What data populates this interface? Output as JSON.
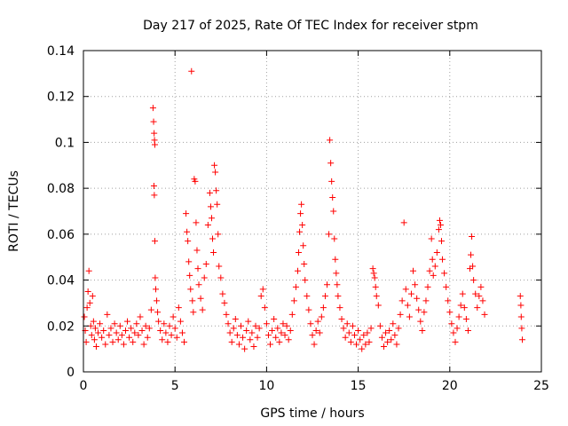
{
  "chart_data": {
    "type": "scatter",
    "title": "Day 217 of 2025, Rate Of TEC Index for receiver stpm",
    "xlabel": "GPS time / hours",
    "ylabel": "ROTI / TECUs",
    "xlim": [
      0,
      25
    ],
    "ylim": [
      0,
      0.14
    ],
    "x_ticks": [
      0,
      5,
      10,
      15,
      20,
      25
    ],
    "x_tick_labels": [
      "0",
      "5",
      "10",
      "15",
      "20",
      "25"
    ],
    "y_ticks": [
      0,
      0.02,
      0.04,
      0.06,
      0.08,
      0.1,
      0.12,
      0.14
    ],
    "y_tick_labels": [
      "0",
      "0.02",
      "0.04",
      "0.06",
      "0.08",
      "0.1",
      "0.12",
      "0.14"
    ],
    "grid": true,
    "marker": "plus",
    "color": "#ff0000",
    "series": [
      {
        "points": [
          [
            0.05,
            0.024
          ],
          [
            0.1,
            0.018
          ],
          [
            0.15,
            0.013
          ],
          [
            0.2,
            0.028
          ],
          [
            0.25,
            0.035
          ],
          [
            0.3,
            0.044
          ],
          [
            0.35,
            0.03
          ],
          [
            0.4,
            0.02
          ],
          [
            0.45,
            0.016
          ],
          [
            0.5,
            0.033
          ],
          [
            0.55,
            0.022
          ],
          [
            0.6,
            0.014
          ],
          [
            0.65,
            0.019
          ],
          [
            0.7,
            0.011
          ],
          [
            0.8,
            0.017
          ],
          [
            0.9,
            0.021
          ],
          [
            1.0,
            0.015
          ],
          [
            1.1,
            0.018
          ],
          [
            1.2,
            0.012
          ],
          [
            1.3,
            0.025
          ],
          [
            1.4,
            0.016
          ],
          [
            1.5,
            0.019
          ],
          [
            1.6,
            0.013
          ],
          [
            1.7,
            0.021
          ],
          [
            1.8,
            0.017
          ],
          [
            1.9,
            0.014
          ],
          [
            2.0,
            0.02
          ],
          [
            2.1,
            0.016
          ],
          [
            2.2,
            0.012
          ],
          [
            2.3,
            0.018
          ],
          [
            2.4,
            0.022
          ],
          [
            2.5,
            0.015
          ],
          [
            2.6,
            0.019
          ],
          [
            2.7,
            0.013
          ],
          [
            2.8,
            0.017
          ],
          [
            2.9,
            0.021
          ],
          [
            3.0,
            0.016
          ],
          [
            3.1,
            0.024
          ],
          [
            3.2,
            0.018
          ],
          [
            3.3,
            0.012
          ],
          [
            3.4,
            0.02
          ],
          [
            3.5,
            0.015
          ],
          [
            3.6,
            0.019
          ],
          [
            3.7,
            0.027
          ],
          [
            3.8,
            0.115
          ],
          [
            3.83,
            0.109
          ],
          [
            3.86,
            0.104
          ],
          [
            3.88,
            0.101
          ],
          [
            3.9,
            0.099
          ],
          [
            3.85,
            0.081
          ],
          [
            3.87,
            0.077
          ],
          [
            3.9,
            0.057
          ],
          [
            3.92,
            0.041
          ],
          [
            3.95,
            0.036
          ],
          [
            4.0,
            0.031
          ],
          [
            4.05,
            0.026
          ],
          [
            4.1,
            0.022
          ],
          [
            4.2,
            0.018
          ],
          [
            4.3,
            0.014
          ],
          [
            4.4,
            0.021
          ],
          [
            4.5,
            0.017
          ],
          [
            4.6,
            0.013
          ],
          [
            4.7,
            0.02
          ],
          [
            4.8,
            0.016
          ],
          [
            4.9,
            0.024
          ],
          [
            5.0,
            0.019
          ],
          [
            5.1,
            0.015
          ],
          [
            5.2,
            0.028
          ],
          [
            5.3,
            0.022
          ],
          [
            5.4,
            0.017
          ],
          [
            5.5,
            0.013
          ],
          [
            5.6,
            0.069
          ],
          [
            5.65,
            0.061
          ],
          [
            5.7,
            0.057
          ],
          [
            5.75,
            0.048
          ],
          [
            5.8,
            0.042
          ],
          [
            5.85,
            0.036
          ],
          [
            5.9,
            0.131
          ],
          [
            5.95,
            0.031
          ],
          [
            6.0,
            0.026
          ],
          [
            6.05,
            0.084
          ],
          [
            6.1,
            0.083
          ],
          [
            6.15,
            0.065
          ],
          [
            6.2,
            0.053
          ],
          [
            6.25,
            0.045
          ],
          [
            6.3,
            0.038
          ],
          [
            6.4,
            0.032
          ],
          [
            6.5,
            0.027
          ],
          [
            6.6,
            0.041
          ],
          [
            6.7,
            0.047
          ],
          [
            6.8,
            0.064
          ],
          [
            6.9,
            0.078
          ],
          [
            6.95,
            0.072
          ],
          [
            7.0,
            0.067
          ],
          [
            7.05,
            0.058
          ],
          [
            7.1,
            0.052
          ],
          [
            7.15,
            0.09
          ],
          [
            7.2,
            0.087
          ],
          [
            7.25,
            0.079
          ],
          [
            7.3,
            0.073
          ],
          [
            7.35,
            0.06
          ],
          [
            7.4,
            0.046
          ],
          [
            7.5,
            0.041
          ],
          [
            7.6,
            0.034
          ],
          [
            7.7,
            0.03
          ],
          [
            7.8,
            0.025
          ],
          [
            7.9,
            0.021
          ],
          [
            8.0,
            0.017
          ],
          [
            8.1,
            0.013
          ],
          [
            8.2,
            0.019
          ],
          [
            8.3,
            0.023
          ],
          [
            8.4,
            0.016
          ],
          [
            8.5,
            0.012
          ],
          [
            8.6,
            0.02
          ],
          [
            8.7,
            0.015
          ],
          [
            8.8,
            0.01
          ],
          [
            8.9,
            0.018
          ],
          [
            9.0,
            0.022
          ],
          [
            9.1,
            0.014
          ],
          [
            9.2,
            0.017
          ],
          [
            9.3,
            0.011
          ],
          [
            9.4,
            0.02
          ],
          [
            9.5,
            0.015
          ],
          [
            9.6,
            0.019
          ],
          [
            9.7,
            0.033
          ],
          [
            9.8,
            0.036
          ],
          [
            9.9,
            0.028
          ],
          [
            10.0,
            0.021
          ],
          [
            10.1,
            0.016
          ],
          [
            10.2,
            0.012
          ],
          [
            10.3,
            0.018
          ],
          [
            10.4,
            0.023
          ],
          [
            10.5,
            0.015
          ],
          [
            10.6,
            0.019
          ],
          [
            10.7,
            0.013
          ],
          [
            10.8,
            0.017
          ],
          [
            10.9,
            0.021
          ],
          [
            11.0,
            0.016
          ],
          [
            11.1,
            0.02
          ],
          [
            11.2,
            0.014
          ],
          [
            11.3,
            0.018
          ],
          [
            11.4,
            0.025
          ],
          [
            11.5,
            0.031
          ],
          [
            11.6,
            0.037
          ],
          [
            11.7,
            0.044
          ],
          [
            11.75,
            0.052
          ],
          [
            11.8,
            0.061
          ],
          [
            11.85,
            0.069
          ],
          [
            11.9,
            0.073
          ],
          [
            11.95,
            0.064
          ],
          [
            12.0,
            0.055
          ],
          [
            12.05,
            0.047
          ],
          [
            12.1,
            0.04
          ],
          [
            12.2,
            0.033
          ],
          [
            12.3,
            0.027
          ],
          [
            12.4,
            0.021
          ],
          [
            12.5,
            0.016
          ],
          [
            12.6,
            0.012
          ],
          [
            12.7,
            0.018
          ],
          [
            12.8,
            0.022
          ],
          [
            12.9,
            0.017
          ],
          [
            13.0,
            0.024
          ],
          [
            13.1,
            0.028
          ],
          [
            13.2,
            0.033
          ],
          [
            13.3,
            0.038
          ],
          [
            13.4,
            0.06
          ],
          [
            13.45,
            0.101
          ],
          [
            13.5,
            0.091
          ],
          [
            13.55,
            0.083
          ],
          [
            13.6,
            0.076
          ],
          [
            13.65,
            0.07
          ],
          [
            13.7,
            0.058
          ],
          [
            13.75,
            0.049
          ],
          [
            13.8,
            0.043
          ],
          [
            13.85,
            0.038
          ],
          [
            13.9,
            0.033
          ],
          [
            14.0,
            0.028
          ],
          [
            14.1,
            0.023
          ],
          [
            14.2,
            0.019
          ],
          [
            14.3,
            0.015
          ],
          [
            14.4,
            0.021
          ],
          [
            14.5,
            0.017
          ],
          [
            14.6,
            0.013
          ],
          [
            14.7,
            0.02
          ],
          [
            14.8,
            0.016
          ],
          [
            14.9,
            0.012
          ],
          [
            15.0,
            0.018
          ],
          [
            15.1,
            0.014
          ],
          [
            15.2,
            0.01
          ],
          [
            15.3,
            0.016
          ],
          [
            15.4,
            0.012
          ],
          [
            15.5,
            0.017
          ],
          [
            15.6,
            0.013
          ],
          [
            15.7,
            0.019
          ],
          [
            15.8,
            0.045
          ],
          [
            15.85,
            0.043
          ],
          [
            15.9,
            0.041
          ],
          [
            15.95,
            0.037
          ],
          [
            16.0,
            0.033
          ],
          [
            16.1,
            0.029
          ],
          [
            16.2,
            0.02
          ],
          [
            16.3,
            0.015
          ],
          [
            16.4,
            0.011
          ],
          [
            16.5,
            0.017
          ],
          [
            16.6,
            0.013
          ],
          [
            16.7,
            0.018
          ],
          [
            16.8,
            0.014
          ],
          [
            16.9,
            0.021
          ],
          [
            17.0,
            0.016
          ],
          [
            17.1,
            0.012
          ],
          [
            17.2,
            0.019
          ],
          [
            17.3,
            0.025
          ],
          [
            17.4,
            0.031
          ],
          [
            17.5,
            0.065
          ],
          [
            17.6,
            0.036
          ],
          [
            17.7,
            0.029
          ],
          [
            17.8,
            0.024
          ],
          [
            17.9,
            0.034
          ],
          [
            18.0,
            0.044
          ],
          [
            18.1,
            0.038
          ],
          [
            18.2,
            0.032
          ],
          [
            18.3,
            0.027
          ],
          [
            18.4,
            0.022
          ],
          [
            18.5,
            0.018
          ],
          [
            18.6,
            0.026
          ],
          [
            18.7,
            0.031
          ],
          [
            18.8,
            0.037
          ],
          [
            18.9,
            0.044
          ],
          [
            19.0,
            0.058
          ],
          [
            19.05,
            0.049
          ],
          [
            19.1,
            0.042
          ],
          [
            19.2,
            0.046
          ],
          [
            19.3,
            0.052
          ],
          [
            19.4,
            0.062
          ],
          [
            19.45,
            0.066
          ],
          [
            19.5,
            0.064
          ],
          [
            19.55,
            0.057
          ],
          [
            19.6,
            0.049
          ],
          [
            19.7,
            0.043
          ],
          [
            19.8,
            0.037
          ],
          [
            19.9,
            0.031
          ],
          [
            20.0,
            0.026
          ],
          [
            20.1,
            0.021
          ],
          [
            20.2,
            0.017
          ],
          [
            20.3,
            0.013
          ],
          [
            20.4,
            0.019
          ],
          [
            20.5,
            0.024
          ],
          [
            20.6,
            0.029
          ],
          [
            20.7,
            0.034
          ],
          [
            20.8,
            0.028
          ],
          [
            20.9,
            0.023
          ],
          [
            21.0,
            0.018
          ],
          [
            21.1,
            0.045
          ],
          [
            21.15,
            0.051
          ],
          [
            21.2,
            0.059
          ],
          [
            21.25,
            0.046
          ],
          [
            21.3,
            0.04
          ],
          [
            21.4,
            0.034
          ],
          [
            21.5,
            0.028
          ],
          [
            21.6,
            0.033
          ],
          [
            21.7,
            0.037
          ],
          [
            21.8,
            0.031
          ],
          [
            21.9,
            0.025
          ],
          [
            23.85,
            0.033
          ],
          [
            23.88,
            0.029
          ],
          [
            23.9,
            0.024
          ],
          [
            23.93,
            0.019
          ],
          [
            23.96,
            0.014
          ]
        ]
      }
    ]
  }
}
